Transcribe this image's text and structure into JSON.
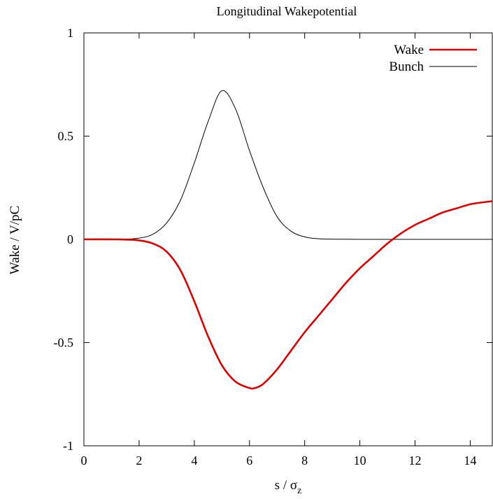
{
  "chart_data": {
    "type": "line",
    "title": "Longitudinal Wakepotential",
    "xlabel": {
      "base": "s / σ",
      "subscript": "z"
    },
    "ylabel": "Wake / V/pC",
    "xlim": [
      0,
      14.8
    ],
    "ylim": [
      -1,
      1
    ],
    "x_ticks": [
      0,
      2,
      4,
      6,
      8,
      10,
      12,
      14
    ],
    "x_tick_labels": [
      "0",
      "2",
      "4",
      "6",
      "8",
      "10",
      "12",
      "14"
    ],
    "y_ticks": [
      -1,
      -0.5,
      0,
      0.5,
      1
    ],
    "y_tick_labels": [
      "-1",
      "-0.5",
      "0",
      "0.5",
      "1"
    ],
    "grid": false,
    "legend_position": "top-right",
    "series": [
      {
        "name": "Wake",
        "color": "#e00000",
        "x": [
          0,
          1,
          1.5,
          2,
          2.5,
          3,
          3.5,
          4,
          4.5,
          5,
          5.5,
          6,
          6.2,
          6.5,
          7,
          7.5,
          8,
          8.5,
          9,
          9.5,
          10,
          10.5,
          11,
          11.5,
          12,
          12.5,
          13,
          13.5,
          14,
          14.5,
          14.8
        ],
        "y": [
          0,
          0,
          -0.001,
          -0.005,
          -0.02,
          -0.06,
          -0.15,
          -0.3,
          -0.47,
          -0.61,
          -0.69,
          -0.72,
          -0.72,
          -0.7,
          -0.63,
          -0.54,
          -0.45,
          -0.37,
          -0.29,
          -0.21,
          -0.14,
          -0.08,
          -0.02,
          0.03,
          0.07,
          0.1,
          0.13,
          0.15,
          0.17,
          0.18,
          0.185
        ]
      },
      {
        "name": "Bunch",
        "color": "#000000",
        "x": [
          0,
          1,
          1.5,
          2,
          2.5,
          3,
          3.5,
          4,
          4.5,
          5,
          5.5,
          6,
          6.5,
          7,
          7.5,
          8,
          8.5,
          9,
          10,
          11,
          12,
          13,
          14,
          14.8
        ],
        "y": [
          0,
          0,
          0.001,
          0.006,
          0.025,
          0.08,
          0.19,
          0.37,
          0.57,
          0.72,
          0.63,
          0.43,
          0.25,
          0.11,
          0.04,
          0.012,
          0.003,
          0.001,
          0,
          0,
          0,
          0,
          0,
          0
        ]
      }
    ]
  }
}
